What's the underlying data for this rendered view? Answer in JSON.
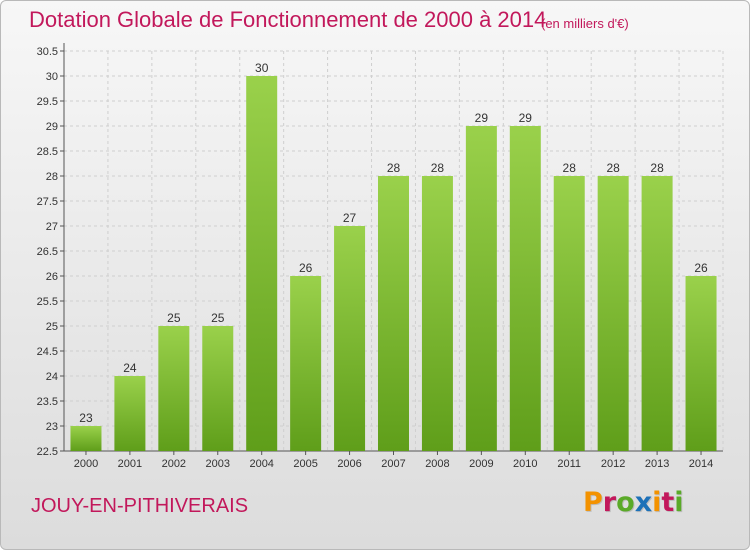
{
  "title": "Dotation Globale de Fonctionnement de 2000 à 2014",
  "subtitle": "(en milliers d'€)",
  "commune": "JOUY-EN-PITHIVERAIS",
  "logo": {
    "text": "Proxiti",
    "colors": [
      "#f39200",
      "#c2185b",
      "#5aaa28",
      "#1d71b8",
      "#f39200",
      "#c2185b",
      "#5aaa28"
    ]
  },
  "colors": {
    "bar_top": "#9ad14b",
    "bar_bottom": "#5f9e1a",
    "accent": "#c2185b"
  },
  "chart_data": {
    "type": "bar",
    "categories": [
      "2000",
      "2001",
      "2002",
      "2003",
      "2004",
      "2005",
      "2006",
      "2007",
      "2008",
      "2009",
      "2010",
      "2011",
      "2012",
      "2013",
      "2014"
    ],
    "values": [
      23,
      24,
      25,
      25,
      30,
      26,
      27,
      28,
      28,
      29,
      29,
      28,
      28,
      28,
      26
    ],
    "data_labels": [
      "23",
      "24",
      "25",
      "25",
      "30",
      "26",
      "27",
      "28",
      "28",
      "29",
      "29",
      "28",
      "28",
      "28",
      "26"
    ],
    "ylim": [
      22.5,
      30.5
    ],
    "yticks": [
      "22.5",
      "23",
      "23.5",
      "24",
      "24.5",
      "25",
      "25.5",
      "26",
      "26.5",
      "27",
      "27.5",
      "28",
      "28.5",
      "29",
      "29.5",
      "30",
      "30.5"
    ],
    "grid": true,
    "title": "Dotation Globale de Fonctionnement de 2000 à 2014",
    "xlabel": "",
    "ylabel": ""
  }
}
